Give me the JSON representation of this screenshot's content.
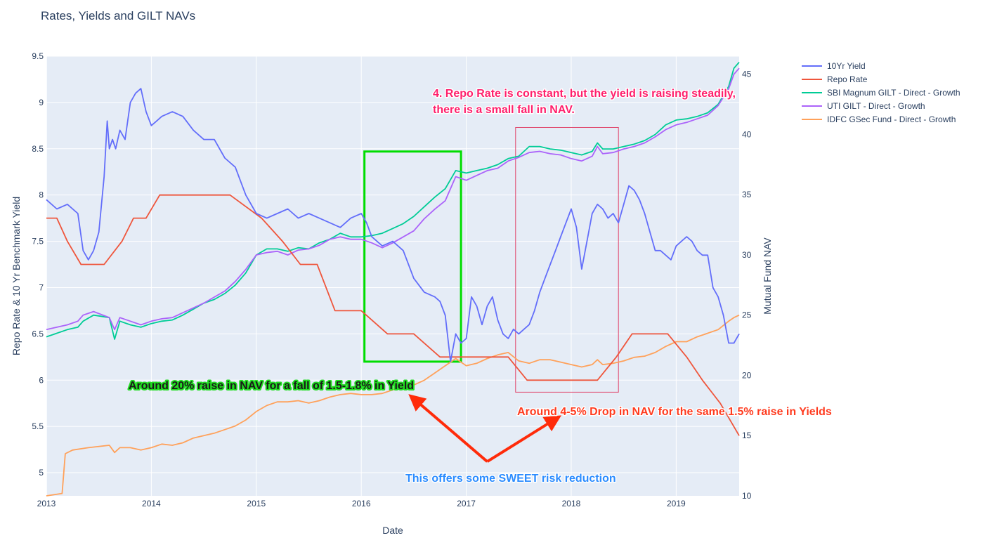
{
  "chart_data": {
    "type": "line",
    "title": "Rates, Yields and GILT NAVs",
    "xlabel": "Date",
    "ylabel": "Repo Rate & 10 Yr Benchmark Yield",
    "y2label": "Mutual Fund NAV",
    "xlim": [
      2013.0,
      2019.6
    ],
    "ylim": [
      4.75,
      9.5
    ],
    "y2lim": [
      10,
      46.5
    ],
    "xticks": [
      "2013",
      "2014",
      "2015",
      "2016",
      "2017",
      "2018",
      "2019"
    ],
    "yticks": [
      "5",
      "5.5",
      "6",
      "6.5",
      "7",
      "7.5",
      "8",
      "8.5",
      "9",
      "9.5"
    ],
    "y2ticks": [
      "10",
      "15",
      "20",
      "25",
      "30",
      "35",
      "40",
      "45"
    ],
    "grid": true,
    "legend_position": "right",
    "series": [
      {
        "name": "10Yr Yield",
        "axis": "y",
        "color": "#636efa",
        "x": [
          2013.0,
          2013.1,
          2013.2,
          2013.3,
          2013.35,
          2013.4,
          2013.45,
          2013.5,
          2013.55,
          2013.58,
          2013.6,
          2013.63,
          2013.66,
          2013.7,
          2013.75,
          2013.8,
          2013.85,
          2013.9,
          2013.95,
          2014.0,
          2014.05,
          2014.1,
          2014.2,
          2014.3,
          2014.4,
          2014.5,
          2014.6,
          2014.7,
          2014.8,
          2014.9,
          2015.0,
          2015.1,
          2015.2,
          2015.3,
          2015.4,
          2015.5,
          2015.6,
          2015.7,
          2015.8,
          2015.9,
          2016.0,
          2016.05,
          2016.1,
          2016.15,
          2016.2,
          2016.3,
          2016.4,
          2016.5,
          2016.6,
          2016.7,
          2016.75,
          2016.8,
          2016.85,
          2016.9,
          2016.95,
          2017.0,
          2017.05,
          2017.1,
          2017.15,
          2017.2,
          2017.25,
          2017.3,
          2017.35,
          2017.4,
          2017.45,
          2017.5,
          2017.55,
          2017.6,
          2017.65,
          2017.7,
          2017.75,
          2017.8,
          2017.85,
          2017.9,
          2017.95,
          2018.0,
          2018.05,
          2018.1,
          2018.15,
          2018.2,
          2018.25,
          2018.3,
          2018.35,
          2018.4,
          2018.45,
          2018.5,
          2018.55,
          2018.6,
          2018.65,
          2018.7,
          2018.75,
          2018.8,
          2018.85,
          2018.9,
          2018.95,
          2019.0,
          2019.05,
          2019.1,
          2019.15,
          2019.2,
          2019.25,
          2019.3,
          2019.35,
          2019.4,
          2019.45,
          2019.5,
          2019.55,
          2019.6
        ],
        "values": [
          7.95,
          7.85,
          7.9,
          7.8,
          7.4,
          7.3,
          7.4,
          7.6,
          8.2,
          8.8,
          8.5,
          8.6,
          8.5,
          8.7,
          8.6,
          9.0,
          9.1,
          9.15,
          8.9,
          8.75,
          8.8,
          8.85,
          8.9,
          8.85,
          8.7,
          8.6,
          8.6,
          8.4,
          8.3,
          8.0,
          7.8,
          7.75,
          7.8,
          7.85,
          7.75,
          7.8,
          7.75,
          7.7,
          7.65,
          7.75,
          7.8,
          7.7,
          7.55,
          7.5,
          7.45,
          7.5,
          7.4,
          7.1,
          6.95,
          6.9,
          6.85,
          6.7,
          6.2,
          6.5,
          6.4,
          6.45,
          6.9,
          6.8,
          6.6,
          6.8,
          6.9,
          6.65,
          6.5,
          6.45,
          6.55,
          6.5,
          6.55,
          6.6,
          6.75,
          6.95,
          7.1,
          7.25,
          7.4,
          7.55,
          7.7,
          7.85,
          7.65,
          7.2,
          7.5,
          7.8,
          7.9,
          7.85,
          7.75,
          7.8,
          7.7,
          7.9,
          8.1,
          8.05,
          7.95,
          7.8,
          7.6,
          7.4,
          7.4,
          7.35,
          7.3,
          7.45,
          7.5,
          7.55,
          7.5,
          7.4,
          7.35,
          7.35,
          7.0,
          6.9,
          6.7,
          6.4,
          6.4,
          6.5
        ]
      },
      {
        "name": "Repo Rate",
        "axis": "y",
        "color": "#ef553b",
        "x": [
          2013.0,
          2013.1,
          2013.2,
          2013.33,
          2013.55,
          2013.72,
          2013.83,
          2013.95,
          2014.08,
          2014.25,
          2014.5,
          2014.75,
          2015.05,
          2015.25,
          2015.42,
          2015.58,
          2015.75,
          2016.0,
          2016.25,
          2016.5,
          2016.75,
          2016.9,
          2017.0,
          2017.25,
          2017.4,
          2017.58,
          2017.8,
          2018.0,
          2018.15,
          2018.25,
          2018.43,
          2018.58,
          2018.75,
          2018.92,
          2019.1,
          2019.25,
          2019.42,
          2019.6
        ],
        "values": [
          7.75,
          7.75,
          7.5,
          7.25,
          7.25,
          7.5,
          7.75,
          7.75,
          8.0,
          8.0,
          8.0,
          8.0,
          7.75,
          7.5,
          7.25,
          7.25,
          6.75,
          6.75,
          6.5,
          6.5,
          6.25,
          6.25,
          6.25,
          6.25,
          6.25,
          6.0,
          6.0,
          6.0,
          6.0,
          6.0,
          6.25,
          6.5,
          6.5,
          6.5,
          6.25,
          6.0,
          5.75,
          5.4
        ]
      },
      {
        "name": "SBI Magnum GILT - Direct - Growth",
        "axis": "y2",
        "color": "#00cc96",
        "x": [
          2013.0,
          2013.1,
          2013.2,
          2013.3,
          2013.35,
          2013.45,
          2013.6,
          2013.65,
          2013.7,
          2013.8,
          2013.9,
          2014.0,
          2014.1,
          2014.2,
          2014.3,
          2014.4,
          2014.5,
          2014.6,
          2014.7,
          2014.8,
          2014.9,
          2015.0,
          2015.1,
          2015.2,
          2015.3,
          2015.4,
          2015.5,
          2015.6,
          2015.7,
          2015.8,
          2015.9,
          2016.0,
          2016.1,
          2016.2,
          2016.3,
          2016.4,
          2016.5,
          2016.6,
          2016.7,
          2016.8,
          2016.9,
          2017.0,
          2017.1,
          2017.2,
          2017.3,
          2017.4,
          2017.5,
          2017.6,
          2017.7,
          2017.8,
          2017.9,
          2018.0,
          2018.1,
          2018.2,
          2018.25,
          2018.3,
          2018.4,
          2018.5,
          2018.6,
          2018.7,
          2018.8,
          2018.9,
          2019.0,
          2019.1,
          2019.2,
          2019.3,
          2019.4,
          2019.5,
          2019.55,
          2019.6
        ],
        "values": [
          23.2,
          23.5,
          23.8,
          24.0,
          24.5,
          25.0,
          24.8,
          23.0,
          24.5,
          24.2,
          24.0,
          24.3,
          24.5,
          24.6,
          25.0,
          25.5,
          26.0,
          26.3,
          26.8,
          27.5,
          28.5,
          30.0,
          30.5,
          30.5,
          30.3,
          30.6,
          30.5,
          31.0,
          31.3,
          31.8,
          31.5,
          31.5,
          31.6,
          31.8,
          32.2,
          32.6,
          33.2,
          34.0,
          34.8,
          35.5,
          37.0,
          36.8,
          37.0,
          37.2,
          37.5,
          38.0,
          38.2,
          39.0,
          39.0,
          38.8,
          38.7,
          38.5,
          38.3,
          38.6,
          39.3,
          38.8,
          38.8,
          39.0,
          39.2,
          39.5,
          40.0,
          40.8,
          41.2,
          41.3,
          41.5,
          41.8,
          42.5,
          44.0,
          45.5,
          46.0
        ]
      },
      {
        "name": "UTI GILT - Direct - Growth",
        "axis": "y2",
        "color": "#ab63fa",
        "x": [
          2013.0,
          2013.1,
          2013.2,
          2013.3,
          2013.35,
          2013.45,
          2013.6,
          2013.65,
          2013.7,
          2013.8,
          2013.9,
          2014.0,
          2014.1,
          2014.2,
          2014.3,
          2014.4,
          2014.5,
          2014.6,
          2014.7,
          2014.8,
          2014.9,
          2015.0,
          2015.1,
          2015.2,
          2015.3,
          2015.4,
          2015.5,
          2015.6,
          2015.7,
          2015.8,
          2015.9,
          2016.0,
          2016.1,
          2016.2,
          2016.3,
          2016.4,
          2016.5,
          2016.6,
          2016.7,
          2016.8,
          2016.9,
          2017.0,
          2017.1,
          2017.2,
          2017.3,
          2017.4,
          2017.5,
          2017.6,
          2017.7,
          2017.8,
          2017.9,
          2018.0,
          2018.1,
          2018.2,
          2018.25,
          2018.3,
          2018.4,
          2018.5,
          2018.6,
          2018.7,
          2018.8,
          2018.9,
          2019.0,
          2019.1,
          2019.2,
          2019.3,
          2019.4,
          2019.5,
          2019.55,
          2019.6
        ],
        "values": [
          23.8,
          24.0,
          24.2,
          24.5,
          25.0,
          25.3,
          24.8,
          23.8,
          24.8,
          24.5,
          24.2,
          24.5,
          24.7,
          24.8,
          25.2,
          25.6,
          26.0,
          26.5,
          27.0,
          27.8,
          28.8,
          30.0,
          30.2,
          30.3,
          30.0,
          30.4,
          30.5,
          30.8,
          31.3,
          31.5,
          31.3,
          31.3,
          31.0,
          30.6,
          31.0,
          31.5,
          32.0,
          33.0,
          33.8,
          34.5,
          36.5,
          36.2,
          36.6,
          37.0,
          37.2,
          37.8,
          38.1,
          38.5,
          38.6,
          38.4,
          38.3,
          38.0,
          37.8,
          38.2,
          39.0,
          38.4,
          38.5,
          38.8,
          39.0,
          39.3,
          39.8,
          40.4,
          40.8,
          41.0,
          41.3,
          41.6,
          42.4,
          43.8,
          45.0,
          45.5
        ]
      },
      {
        "name": "IDFC GSec Fund - Direct - Growth",
        "axis": "y2",
        "color": "#ffa15a",
        "x": [
          2013.0,
          2013.15,
          2013.18,
          2013.25,
          2013.4,
          2013.6,
          2013.65,
          2013.7,
          2013.8,
          2013.9,
          2014.0,
          2014.1,
          2014.2,
          2014.3,
          2014.4,
          2014.5,
          2014.6,
          2014.7,
          2014.8,
          2014.9,
          2015.0,
          2015.1,
          2015.2,
          2015.3,
          2015.4,
          2015.5,
          2015.6,
          2015.7,
          2015.8,
          2015.9,
          2016.0,
          2016.1,
          2016.2,
          2016.3,
          2016.4,
          2016.5,
          2016.6,
          2016.7,
          2016.8,
          2016.9,
          2017.0,
          2017.1,
          2017.2,
          2017.3,
          2017.4,
          2017.5,
          2017.6,
          2017.7,
          2017.8,
          2017.9,
          2018.0,
          2018.1,
          2018.2,
          2018.25,
          2018.3,
          2018.4,
          2018.5,
          2018.6,
          2018.7,
          2018.8,
          2018.9,
          2019.0,
          2019.1,
          2019.2,
          2019.3,
          2019.4,
          2019.5,
          2019.55,
          2019.6
        ],
        "values": [
          10.0,
          10.2,
          13.5,
          13.8,
          14.0,
          14.2,
          13.6,
          14.0,
          14.0,
          13.8,
          14.0,
          14.3,
          14.2,
          14.4,
          14.8,
          15.0,
          15.2,
          15.5,
          15.8,
          16.3,
          17.0,
          17.5,
          17.8,
          17.8,
          17.9,
          17.7,
          17.9,
          18.2,
          18.4,
          18.5,
          18.4,
          18.4,
          18.5,
          18.8,
          19.0,
          19.2,
          19.6,
          20.2,
          20.8,
          21.4,
          20.8,
          21.0,
          21.4,
          21.7,
          21.9,
          21.2,
          21.0,
          21.3,
          21.3,
          21.1,
          20.9,
          20.7,
          20.9,
          21.3,
          20.9,
          21.0,
          21.2,
          21.5,
          21.6,
          21.9,
          22.4,
          22.8,
          22.8,
          23.2,
          23.5,
          23.8,
          24.5,
          24.8,
          25.0
        ]
      }
    ],
    "annotations": [
      {
        "text": "4. Repo Rate is constant, but the yield is raising steadily,",
        "color": "#ff1f6b"
      },
      {
        "text": "there is a small fall in NAV.",
        "color": "#ff1f6b"
      },
      {
        "text": "Around 20% raise in NAV for a fall of 1.5-1.8% in Yield",
        "color": "#1a1a1a",
        "outline": "#22dd22"
      },
      {
        "text": "Around 4-5% Drop in NAV for the same 1.5% raise in Yields",
        "color": "#ff3b1f"
      },
      {
        "text": "This offers some SWEET risk reduction",
        "color": "#2b8cff"
      }
    ],
    "highlight_boxes": [
      {
        "x0": 2016.03,
        "x1": 2016.95,
        "y0": 6.2,
        "y1": 8.47,
        "color": "#00dd00"
      },
      {
        "x0": 2017.47,
        "x1": 2018.45,
        "y0": 5.87,
        "y1": 8.73,
        "color": "#e0446a"
      }
    ],
    "arrows": [
      {
        "from": [
          2017.2,
          5.12
        ],
        "to": [
          2016.5,
          5.8
        ],
        "color": "#ff2b0a"
      },
      {
        "from": [
          2017.2,
          5.12
        ],
        "to": [
          2017.85,
          5.58
        ],
        "color": "#ff2b0a"
      }
    ]
  }
}
